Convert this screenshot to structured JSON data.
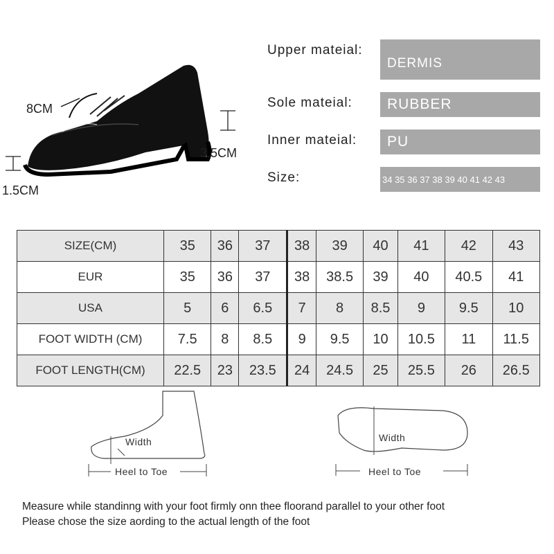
{
  "dimensions": {
    "shaft": "8CM",
    "heel": "3.5CM",
    "platform": "1.5CM"
  },
  "materials": [
    {
      "label": "Upper mateial:",
      "value": "DERMIS"
    },
    {
      "label": "Sole mateial:",
      "value": "RUBBER"
    },
    {
      "label": "Inner mateial:",
      "value": "PU"
    },
    {
      "label": "Size:",
      "value": "34 35 36 37 38 39 40 41 42 43"
    }
  ],
  "size_table": {
    "rows": [
      {
        "label": "SIZE(CM)",
        "values": [
          "35",
          "36",
          "37",
          "38",
          "39",
          "40",
          "41",
          "42",
          "43"
        ]
      },
      {
        "label": "EUR",
        "values": [
          "35",
          "36",
          "37",
          "38",
          "38.5",
          "39",
          "40",
          "40.5",
          "41"
        ]
      },
      {
        "label": "USA",
        "values": [
          "5",
          "6",
          "6.5",
          "7",
          "8",
          "8.5",
          "9",
          "9.5",
          "10"
        ]
      },
      {
        "label": "FOOT WIDTH (CM)",
        "values": [
          "7.5",
          "8",
          "8.5",
          "9",
          "9.5",
          "10",
          "10.5",
          "11",
          "11.5"
        ]
      },
      {
        "label": "FOOT LENGTH(CM)",
        "values": [
          "22.5",
          "23",
          "23.5",
          "24",
          "24.5",
          "25",
          "25.5",
          "26",
          "26.5"
        ]
      }
    ]
  },
  "diagrams": {
    "width_label": "Width",
    "length_label": "Heel to Toe"
  },
  "notes": [
    "Measure while standinng with your foot firmly onn thee floorand parallel to your other foot",
    "Please chose the size aording to the actual length of the foot"
  ]
}
